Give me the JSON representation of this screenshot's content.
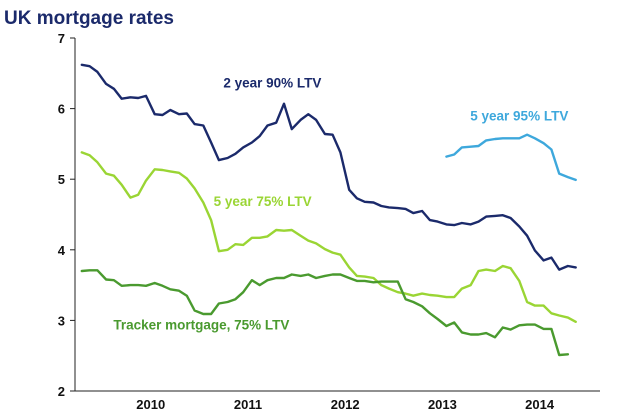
{
  "chart_data": {
    "type": "line",
    "title": "UK mortgage rates",
    "xlabel": "",
    "ylabel": "",
    "ylim": [
      2,
      7
    ],
    "xlim": [
      2009.55,
      2014.95
    ],
    "yticks": [
      2,
      3,
      4,
      5,
      6,
      7
    ],
    "xticks": [
      {
        "label": "2010",
        "x": 2010.0
      },
      {
        "label": "2011",
        "x": 2011.0
      },
      {
        "label": "2012",
        "x": 2012.0
      },
      {
        "label": "2013",
        "x": 2013.0
      },
      {
        "label": "2014",
        "x": 2014.0
      }
    ],
    "grid": false,
    "legend": "none",
    "series": [
      {
        "name": "2 year 90% LTV",
        "color": "#1b2a6b",
        "points": [
          [
            2009.62,
            6.62
          ],
          [
            2009.7,
            6.6
          ],
          [
            2009.78,
            6.52
          ],
          [
            2009.87,
            6.35
          ],
          [
            2009.95,
            6.28
          ],
          [
            2010.03,
            6.14
          ],
          [
            2010.12,
            6.16
          ],
          [
            2010.2,
            6.15
          ],
          [
            2010.28,
            6.18
          ],
          [
            2010.37,
            5.92
          ],
          [
            2010.45,
            5.91
          ],
          [
            2010.53,
            5.98
          ],
          [
            2010.62,
            5.92
          ],
          [
            2010.7,
            5.93
          ],
          [
            2010.78,
            5.78
          ],
          [
            2010.87,
            5.76
          ],
          [
            2010.95,
            5.52
          ],
          [
            2011.03,
            5.27
          ],
          [
            2011.12,
            5.3
          ],
          [
            2011.2,
            5.36
          ],
          [
            2011.28,
            5.45
          ],
          [
            2011.37,
            5.52
          ],
          [
            2011.45,
            5.61
          ],
          [
            2011.53,
            5.76
          ],
          [
            2011.62,
            5.8
          ],
          [
            2011.7,
            6.07
          ],
          [
            2011.78,
            5.71
          ],
          [
            2011.87,
            5.84
          ],
          [
            2011.95,
            5.92
          ],
          [
            2012.03,
            5.84
          ],
          [
            2012.12,
            5.64
          ],
          [
            2012.2,
            5.63
          ],
          [
            2012.28,
            5.38
          ],
          [
            2012.37,
            4.85
          ],
          [
            2012.45,
            4.73
          ],
          [
            2012.53,
            4.68
          ],
          [
            2012.62,
            4.67
          ],
          [
            2012.7,
            4.62
          ],
          [
            2012.78,
            4.6
          ],
          [
            2012.87,
            4.59
          ],
          [
            2012.95,
            4.58
          ],
          [
            2013.03,
            4.52
          ],
          [
            2013.12,
            4.55
          ],
          [
            2013.2,
            4.42
          ],
          [
            2013.28,
            4.4
          ],
          [
            2013.37,
            4.36
          ],
          [
            2013.45,
            4.35
          ],
          [
            2013.53,
            4.38
          ],
          [
            2013.62,
            4.36
          ],
          [
            2013.7,
            4.4
          ],
          [
            2013.78,
            4.47
          ],
          [
            2013.87,
            4.48
          ],
          [
            2013.95,
            4.49
          ],
          [
            2014.03,
            4.45
          ],
          [
            2014.12,
            4.33
          ],
          [
            2014.2,
            4.2
          ],
          [
            2014.28,
            3.99
          ],
          [
            2014.37,
            3.85
          ],
          [
            2014.45,
            3.89
          ],
          [
            2014.53,
            3.72
          ],
          [
            2014.62,
            3.77
          ],
          [
            2014.7,
            3.75
          ]
        ]
      },
      {
        "name": "5 year 95% LTV",
        "color": "#3ea8dc",
        "points": [
          [
            2013.37,
            5.32
          ],
          [
            2013.45,
            5.35
          ],
          [
            2013.53,
            5.45
          ],
          [
            2013.62,
            5.46
          ],
          [
            2013.7,
            5.47
          ],
          [
            2013.78,
            5.55
          ],
          [
            2013.87,
            5.57
          ],
          [
            2013.95,
            5.58
          ],
          [
            2014.03,
            5.58
          ],
          [
            2014.12,
            5.58
          ],
          [
            2014.2,
            5.63
          ],
          [
            2014.28,
            5.58
          ],
          [
            2014.37,
            5.51
          ],
          [
            2014.45,
            5.42
          ],
          [
            2014.53,
            5.08
          ],
          [
            2014.62,
            5.03
          ],
          [
            2014.7,
            4.99
          ]
        ]
      },
      {
        "name": "5 year 75% LTV",
        "color": "#9ad534",
        "points": [
          [
            2009.62,
            5.38
          ],
          [
            2009.7,
            5.34
          ],
          [
            2009.78,
            5.24
          ],
          [
            2009.87,
            5.08
          ],
          [
            2009.95,
            5.05
          ],
          [
            2010.03,
            4.92
          ],
          [
            2010.12,
            4.74
          ],
          [
            2010.2,
            4.78
          ],
          [
            2010.28,
            4.98
          ],
          [
            2010.37,
            5.14
          ],
          [
            2010.45,
            5.13
          ],
          [
            2010.53,
            5.11
          ],
          [
            2010.62,
            5.09
          ],
          [
            2010.7,
            5.01
          ],
          [
            2010.78,
            4.87
          ],
          [
            2010.87,
            4.67
          ],
          [
            2010.95,
            4.42
          ],
          [
            2011.03,
            3.98
          ],
          [
            2011.12,
            4.0
          ],
          [
            2011.2,
            4.08
          ],
          [
            2011.28,
            4.07
          ],
          [
            2011.37,
            4.17
          ],
          [
            2011.45,
            4.17
          ],
          [
            2011.53,
            4.19
          ],
          [
            2011.62,
            4.28
          ],
          [
            2011.7,
            4.27
          ],
          [
            2011.78,
            4.28
          ],
          [
            2011.87,
            4.2
          ],
          [
            2011.95,
            4.13
          ],
          [
            2012.03,
            4.09
          ],
          [
            2012.12,
            4.01
          ],
          [
            2012.2,
            3.96
          ],
          [
            2012.28,
            3.93
          ],
          [
            2012.37,
            3.75
          ],
          [
            2012.45,
            3.63
          ],
          [
            2012.53,
            3.62
          ],
          [
            2012.62,
            3.6
          ],
          [
            2012.7,
            3.5
          ],
          [
            2012.78,
            3.45
          ],
          [
            2012.87,
            3.4
          ],
          [
            2012.95,
            3.38
          ],
          [
            2013.03,
            3.35
          ],
          [
            2013.12,
            3.38
          ],
          [
            2013.2,
            3.36
          ],
          [
            2013.28,
            3.35
          ],
          [
            2013.37,
            3.33
          ],
          [
            2013.45,
            3.33
          ],
          [
            2013.53,
            3.45
          ],
          [
            2013.62,
            3.5
          ],
          [
            2013.7,
            3.7
          ],
          [
            2013.78,
            3.72
          ],
          [
            2013.87,
            3.7
          ],
          [
            2013.95,
            3.77
          ],
          [
            2014.03,
            3.74
          ],
          [
            2014.12,
            3.56
          ],
          [
            2014.2,
            3.26
          ],
          [
            2014.28,
            3.21
          ],
          [
            2014.37,
            3.21
          ],
          [
            2014.45,
            3.1
          ],
          [
            2014.53,
            3.07
          ],
          [
            2014.62,
            3.04
          ],
          [
            2014.7,
            2.98
          ]
        ]
      },
      {
        "name": "Tracker mortgage, 75% LTV",
        "color": "#4a9a2f",
        "points": [
          [
            2009.62,
            3.7
          ],
          [
            2009.7,
            3.71
          ],
          [
            2009.78,
            3.71
          ],
          [
            2009.87,
            3.58
          ],
          [
            2009.95,
            3.57
          ],
          [
            2010.03,
            3.49
          ],
          [
            2010.12,
            3.5
          ],
          [
            2010.2,
            3.5
          ],
          [
            2010.28,
            3.49
          ],
          [
            2010.37,
            3.53
          ],
          [
            2010.45,
            3.49
          ],
          [
            2010.53,
            3.44
          ],
          [
            2010.62,
            3.42
          ],
          [
            2010.7,
            3.35
          ],
          [
            2010.78,
            3.14
          ],
          [
            2010.87,
            3.09
          ],
          [
            2010.95,
            3.09
          ],
          [
            2011.03,
            3.24
          ],
          [
            2011.12,
            3.26
          ],
          [
            2011.2,
            3.3
          ],
          [
            2011.28,
            3.4
          ],
          [
            2011.37,
            3.57
          ],
          [
            2011.45,
            3.5
          ],
          [
            2011.53,
            3.57
          ],
          [
            2011.62,
            3.6
          ],
          [
            2011.7,
            3.6
          ],
          [
            2011.78,
            3.65
          ],
          [
            2011.87,
            3.63
          ],
          [
            2011.95,
            3.65
          ],
          [
            2012.03,
            3.6
          ],
          [
            2012.12,
            3.63
          ],
          [
            2012.2,
            3.65
          ],
          [
            2012.28,
            3.65
          ],
          [
            2012.37,
            3.6
          ],
          [
            2012.45,
            3.56
          ],
          [
            2012.53,
            3.56
          ],
          [
            2012.62,
            3.54
          ],
          [
            2012.7,
            3.55
          ],
          [
            2012.78,
            3.55
          ],
          [
            2012.87,
            3.55
          ],
          [
            2012.95,
            3.3
          ],
          [
            2013.03,
            3.26
          ],
          [
            2013.12,
            3.2
          ],
          [
            2013.2,
            3.1
          ],
          [
            2013.28,
            3.02
          ],
          [
            2013.37,
            2.92
          ],
          [
            2013.45,
            2.97
          ],
          [
            2013.53,
            2.83
          ],
          [
            2013.62,
            2.8
          ],
          [
            2013.7,
            2.8
          ],
          [
            2013.78,
            2.82
          ],
          [
            2013.87,
            2.76
          ],
          [
            2013.95,
            2.9
          ],
          [
            2014.03,
            2.87
          ],
          [
            2014.12,
            2.93
          ],
          [
            2014.2,
            2.94
          ],
          [
            2014.28,
            2.94
          ],
          [
            2014.37,
            2.88
          ],
          [
            2014.45,
            2.88
          ],
          [
            2014.53,
            2.51
          ],
          [
            2014.62,
            2.52
          ]
        ]
      }
    ],
    "annotations": [
      {
        "text": "2 year 90% LTV",
        "series": 0,
        "x": 2011.58,
        "y": 6.3
      },
      {
        "text": "5 year 95% LTV",
        "series": 1,
        "x": 2014.12,
        "y": 5.83
      },
      {
        "text": "5 year 75% LTV",
        "series": 2,
        "x": 2011.48,
        "y": 4.62
      },
      {
        "text": "Tracker mortgage, 75% LTV",
        "series": 3,
        "x": 2010.85,
        "y": 2.87
      }
    ]
  }
}
